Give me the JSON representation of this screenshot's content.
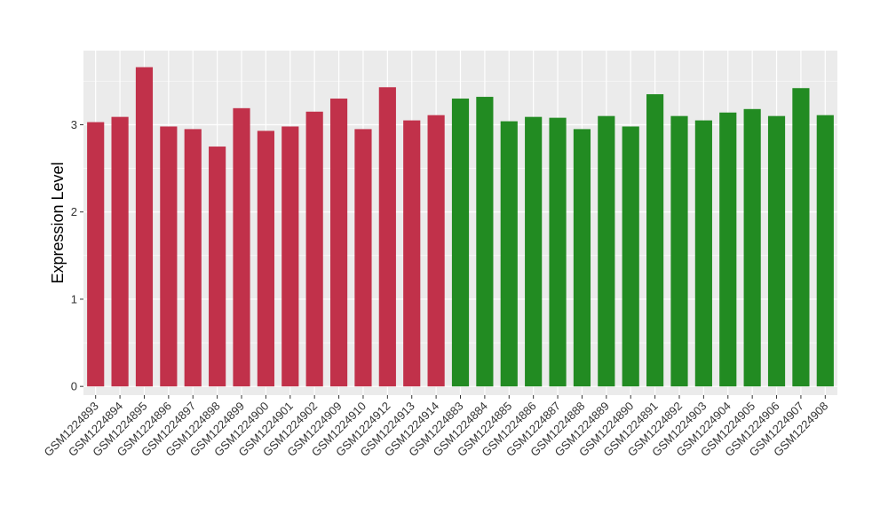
{
  "chart_data": {
    "type": "bar",
    "title": "",
    "xlabel": "",
    "ylabel": "Expression Level",
    "ylim": [
      -0.1,
      3.85
    ],
    "yticks": [
      0,
      1,
      2,
      3
    ],
    "grid": true,
    "legend": "none",
    "background_color": "#ebebeb",
    "categories": [
      "GSM1224893",
      "GSM1224894",
      "GSM1224895",
      "GSM1224896",
      "GSM1224897",
      "GSM1224898",
      "GSM1224899",
      "GSM1224900",
      "GSM1224901",
      "GSM1224902",
      "GSM1224909",
      "GSM1224910",
      "GSM1224912",
      "GSM1224913",
      "GSM1224914",
      "GSM1224883",
      "GSM1224884",
      "GSM1224885",
      "GSM1224886",
      "GSM1224887",
      "GSM1224888",
      "GSM1224889",
      "GSM1224890",
      "GSM1224891",
      "GSM1224892",
      "GSM1224903",
      "GSM1224904",
      "GSM1224905",
      "GSM1224906",
      "GSM1224907",
      "GSM1224908"
    ],
    "values": [
      3.03,
      3.09,
      3.66,
      2.98,
      2.95,
      2.75,
      3.19,
      2.93,
      2.98,
      3.15,
      3.3,
      2.95,
      3.43,
      3.05,
      3.11,
      3.3,
      3.32,
      3.04,
      3.09,
      3.08,
      2.95,
      3.1,
      2.98,
      3.35,
      3.1,
      3.05,
      3.14,
      3.18,
      3.1,
      3.42,
      3.11
    ],
    "colors": [
      "#c1314a",
      "#c1314a",
      "#c1314a",
      "#c1314a",
      "#c1314a",
      "#c1314a",
      "#c1314a",
      "#c1314a",
      "#c1314a",
      "#c1314a",
      "#c1314a",
      "#c1314a",
      "#c1314a",
      "#c1314a",
      "#c1314a",
      "#228b22",
      "#228b22",
      "#228b22",
      "#228b22",
      "#228b22",
      "#228b22",
      "#228b22",
      "#228b22",
      "#228b22",
      "#228b22",
      "#228b22",
      "#228b22",
      "#228b22",
      "#228b22",
      "#228b22",
      "#228b22"
    ]
  }
}
